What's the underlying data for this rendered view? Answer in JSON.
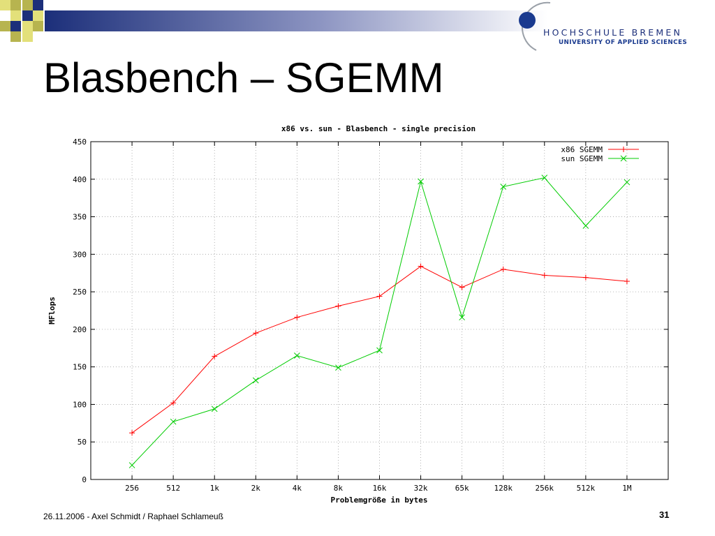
{
  "slide": {
    "title": "Blasbench – SGEMM",
    "footer": "26.11.2006 - Axel Schmidt / Raphael Schlameuß",
    "page_number": "31"
  },
  "logo": {
    "name": "HOCHSCHULE BREMEN",
    "subtitle": "UNIVERSITY OF APPLIED SCIENCES",
    "colors": {
      "blue": "#1a3a8f",
      "dark_blue": "#1c2f7a",
      "olive": "#b7b44f",
      "yellow": "#e3e07a"
    }
  },
  "chart_data": {
    "type": "line",
    "title": "x86 vs. sun - Blasbench - single precision",
    "xlabel": "Problemgröße in bytes",
    "ylabel": "MFlops",
    "categories": [
      "256",
      "512",
      "1k",
      "2k",
      "4k",
      "8k",
      "16k",
      "32k",
      "65k",
      "128k",
      "256k",
      "512k",
      "1M"
    ],
    "ylim": [
      0,
      450
    ],
    "yticks": [
      "0",
      "50",
      "100",
      "150",
      "200",
      "250",
      "300",
      "350",
      "400",
      "450"
    ],
    "grid": true,
    "legend_position": "top-right",
    "series": [
      {
        "name": "x86 SGEMM",
        "color": "#ff0000",
        "marker": "+",
        "values": [
          62,
          102,
          164,
          195,
          216,
          231,
          244,
          284,
          256,
          280,
          272,
          269,
          264
        ]
      },
      {
        "name": "sun SGEMM",
        "color": "#00cc00",
        "marker": "x",
        "values": [
          19,
          77,
          94,
          132,
          165,
          149,
          172,
          397,
          216,
          390,
          402,
          338,
          396
        ]
      }
    ]
  }
}
